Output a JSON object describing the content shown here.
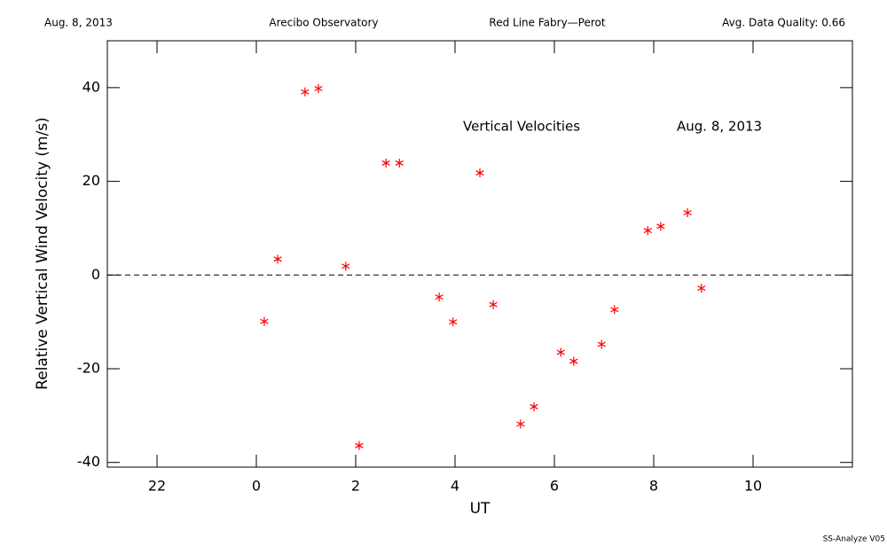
{
  "chart_data": {
    "type": "scatter",
    "header": [
      "Aug. 8, 2013",
      "Arecibo Observatory",
      "Red Line Fabry—Perot",
      "Avg. Data Quality: 0.66"
    ],
    "annotations": [
      "Vertical Velocities",
      "Aug. 8, 2013"
    ],
    "footer": "SS-Analyze V05",
    "x_label": "UT",
    "y_label": "Relative Vertical Wind Velocity (m/s)",
    "xlim": [
      -3,
      12
    ],
    "xticks": [
      {
        "value": -2,
        "label": "22"
      },
      0,
      2,
      4,
      6,
      8,
      10
    ],
    "ylim": [
      -41,
      50
    ],
    "yticks": [
      -40,
      -20,
      0,
      20,
      40
    ],
    "reference_line": 0,
    "series": [
      {
        "color": "#ff0000",
        "x": [
          0.16,
          0.43,
          0.98,
          1.25,
          1.8,
          2.07,
          2.61,
          2.88,
          3.68,
          3.96,
          4.5,
          4.77,
          5.32,
          5.59,
          6.13,
          6.39,
          6.95,
          7.21,
          7.88,
          8.14,
          8.68,
          8.96
        ],
        "values": [
          -9.9,
          3.4,
          39.1,
          39.8,
          1.9,
          -36.4,
          23.9,
          23.9,
          -4.7,
          -10.0,
          21.8,
          -6.3,
          -31.8,
          -28.1,
          -16.5,
          -18.4,
          -14.8,
          -7.4,
          9.5,
          10.4,
          13.3,
          -2.8
        ]
      }
    ]
  }
}
